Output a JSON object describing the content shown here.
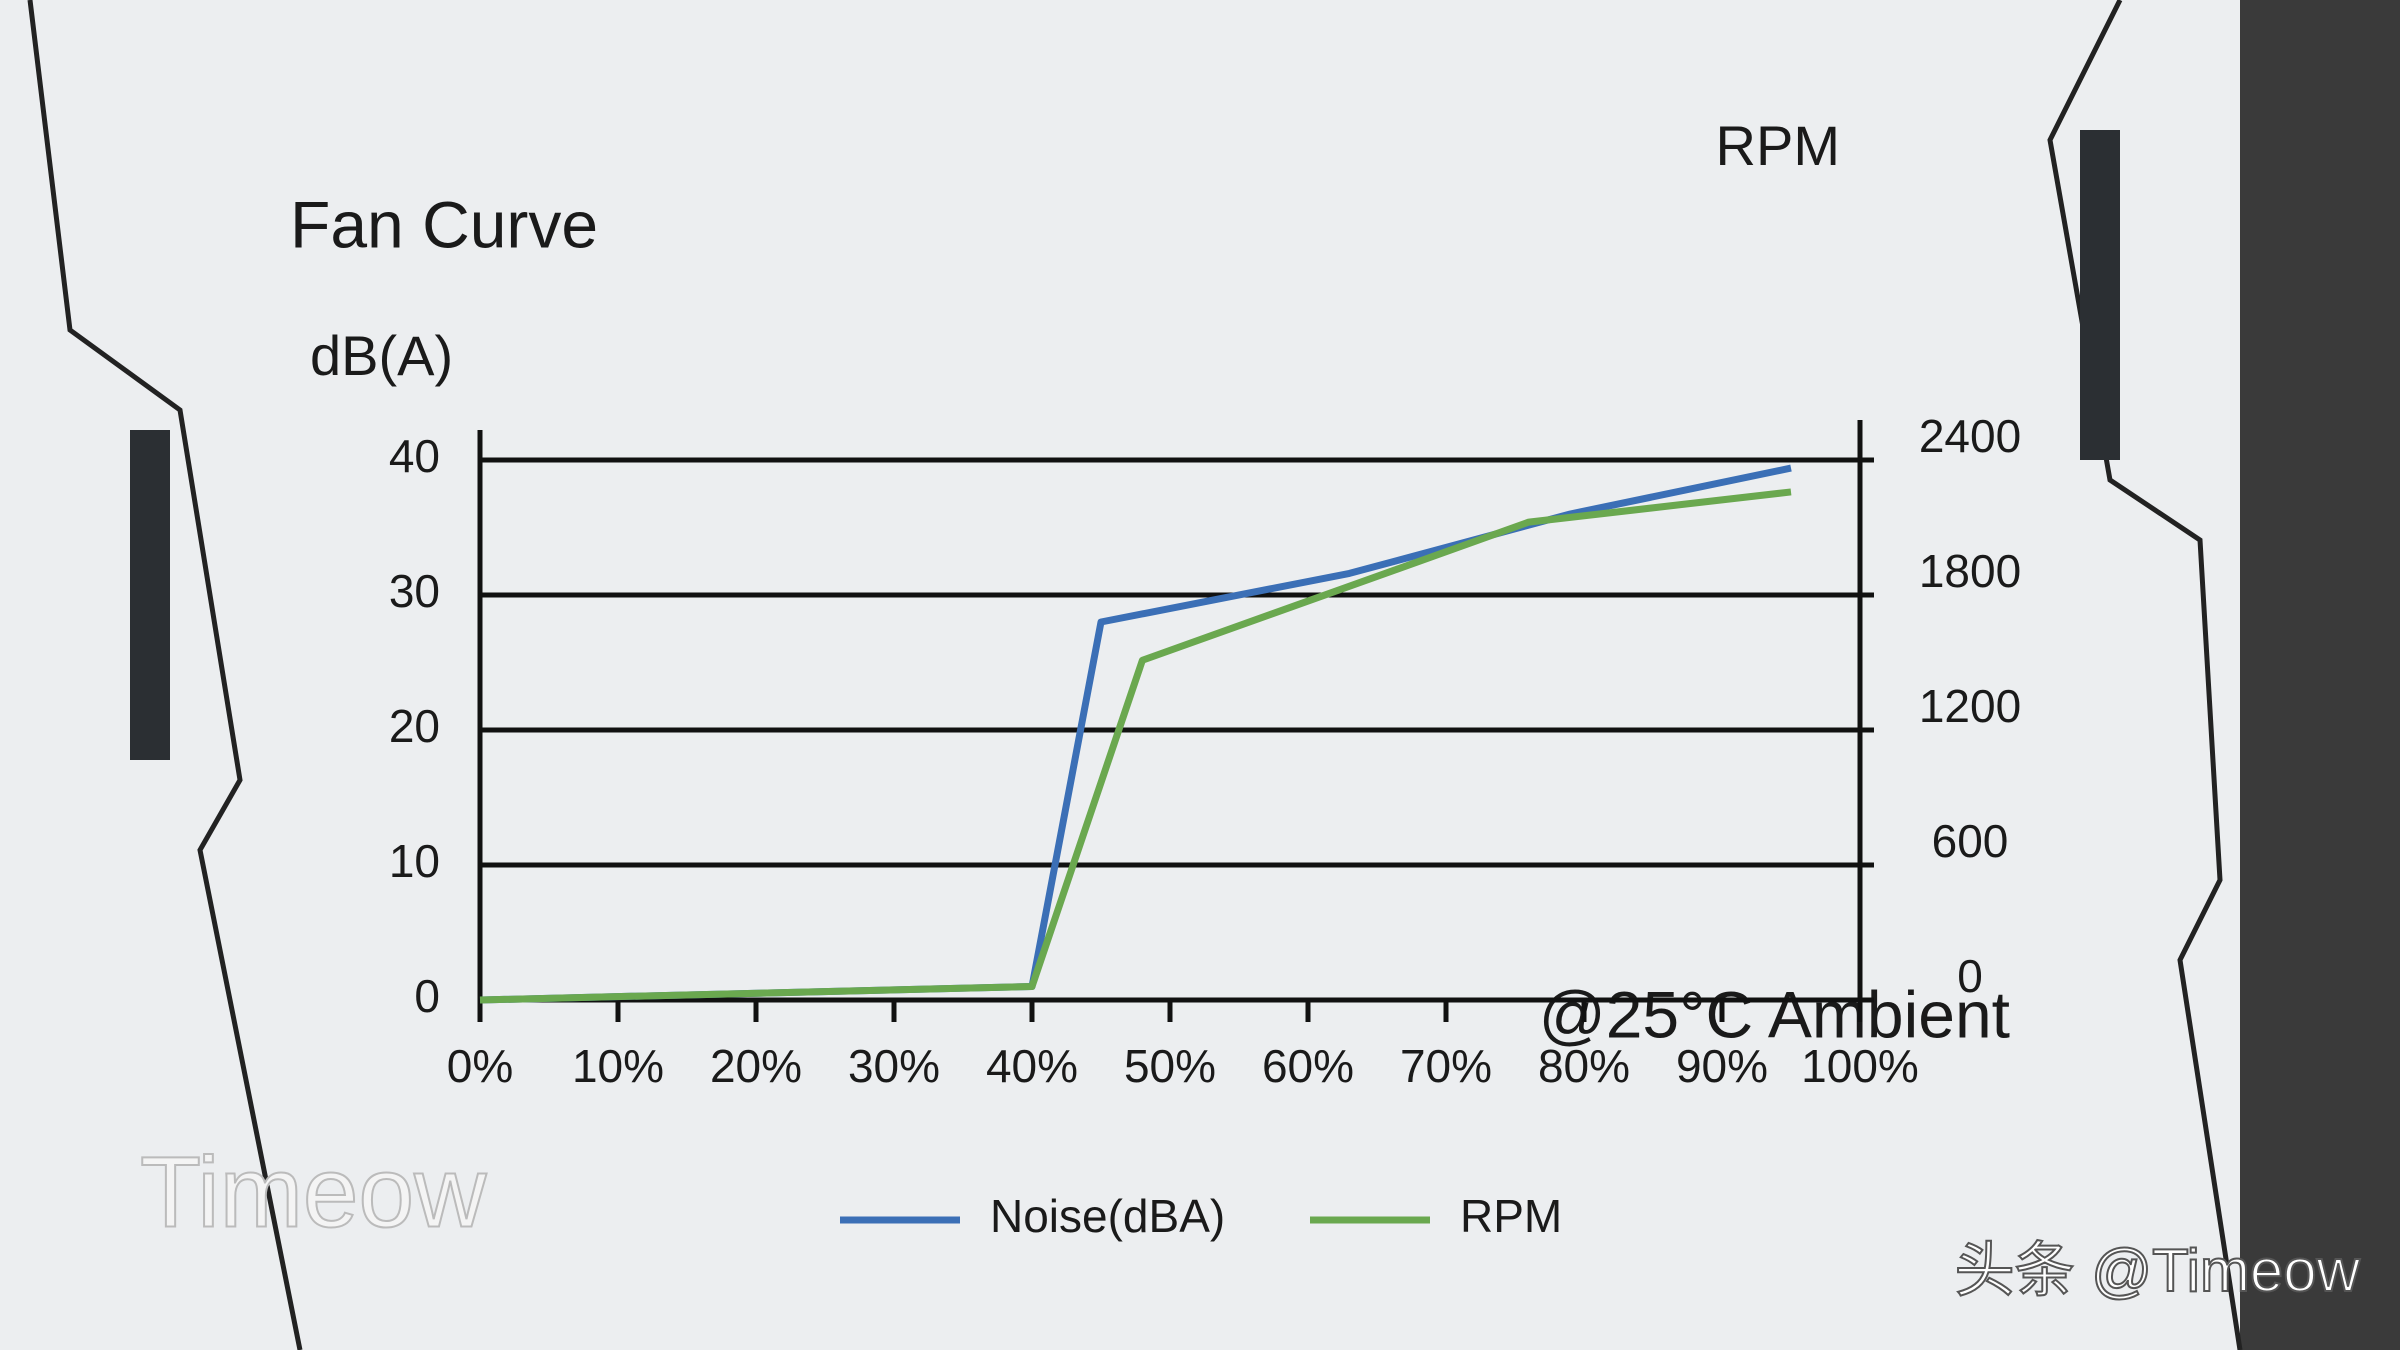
{
  "chart_data": {
    "type": "line",
    "title": "Fan Curve",
    "y_label": "dB(A)",
    "y2_label": "RPM",
    "annotation": "@25°C Ambient",
    "xlim": [
      0,
      100
    ],
    "xticks": [
      {
        "value": 0,
        "label": "0%"
      },
      {
        "value": 10,
        "label": "10%"
      },
      {
        "value": 20,
        "label": "20%"
      },
      {
        "value": 30,
        "label": "30%"
      },
      {
        "value": 40,
        "label": "40%"
      },
      {
        "value": 50,
        "label": "50%"
      },
      {
        "value": 60,
        "label": "60%"
      },
      {
        "value": 70,
        "label": "70%"
      },
      {
        "value": 80,
        "label": "80%"
      },
      {
        "value": 90,
        "label": "90%"
      },
      {
        "value": 100,
        "label": "100%"
      }
    ],
    "ylim": [
      0,
      40
    ],
    "yticks": [
      0,
      10,
      20,
      30,
      40
    ],
    "y2lim": [
      0,
      2400
    ],
    "y2ticks": [
      0,
      600,
      1200,
      1800,
      2400
    ],
    "grid": true,
    "series": [
      {
        "name": "Noise(dBA)",
        "color": "#3b6fb6",
        "x": [
          0,
          40,
          45,
          63,
          79,
          95
        ],
        "values": [
          0,
          1,
          28,
          31.6,
          36,
          39.4
        ]
      },
      {
        "name": "RPM",
        "color": "#6aa84f",
        "axis": "y2",
        "x": [
          0,
          40,
          48,
          76,
          95
        ],
        "values": [
          0,
          60,
          1510,
          2124,
          2258
        ]
      }
    ]
  },
  "watermarks": [
    "Timeow",
    "头条 @Timeow"
  ]
}
